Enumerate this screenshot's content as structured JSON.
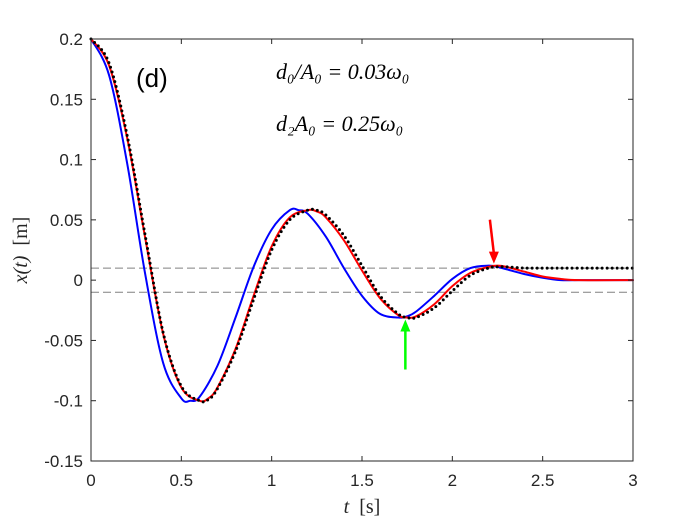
{
  "chart_data": {
    "type": "line",
    "panel_label": "(d)",
    "xlabel": {
      "var": "t",
      "unit": "[s]"
    },
    "ylabel": {
      "var": "x(t)",
      "unit": "[m]"
    },
    "xlim": [
      0,
      3
    ],
    "ylim": [
      -0.15,
      0.2
    ],
    "xticks": [
      0,
      0.5,
      1,
      1.5,
      2,
      2.5,
      3
    ],
    "xtick_labels": [
      "0",
      "0.5",
      "1",
      "1.5",
      "2",
      "2.5",
      "3"
    ],
    "yticks": [
      -0.15,
      -0.1,
      -0.05,
      0,
      0.05,
      0.1,
      0.15,
      0.2
    ],
    "ytick_labels": [
      "-0.15",
      "-0.1",
      "-0.05",
      "0",
      "0.05",
      "0.1",
      "0.15",
      "0.2"
    ],
    "annotations": [
      {
        "text": "d₀/A₀ = 0.03ω₀"
      },
      {
        "text": "d₂A₀ = 0.25ω₀"
      }
    ],
    "reference_lines": [
      {
        "y": 0.01,
        "style": "dashed",
        "color": "#808080"
      },
      {
        "y": -0.01,
        "style": "dashed",
        "color": "#808080"
      }
    ],
    "series": [
      {
        "name": "blue",
        "color": "#0000ff",
        "style": "solid",
        "x": [
          0,
          0.1,
          0.2,
          0.3,
          0.4,
          0.5,
          0.55,
          0.6,
          0.7,
          0.8,
          0.9,
          1.0,
          1.1,
          1.15,
          1.2,
          1.3,
          1.4,
          1.5,
          1.6,
          1.7,
          1.75,
          1.8,
          1.9,
          2.0,
          2.1,
          2.2,
          2.25,
          2.3,
          2.4,
          2.5,
          2.6,
          2.7,
          3.0
        ],
        "y": [
          0.2,
          0.17,
          0.097,
          0.005,
          -0.069,
          -0.098,
          -0.1,
          -0.097,
          -0.071,
          -0.031,
          0.011,
          0.042,
          0.058,
          0.058,
          0.055,
          0.036,
          0.01,
          -0.013,
          -0.028,
          -0.031,
          -0.03,
          -0.026,
          -0.013,
          0.001,
          0.01,
          0.012,
          0.011,
          0.009,
          0.005,
          0.002,
          0,
          0,
          0
        ]
      },
      {
        "name": "red",
        "color": "#ff0000",
        "style": "solid",
        "x": [
          0,
          0.1,
          0.2,
          0.3,
          0.4,
          0.5,
          0.6,
          0.65,
          0.7,
          0.8,
          0.9,
          1.0,
          1.1,
          1.2,
          1.25,
          1.3,
          1.4,
          1.5,
          1.6,
          1.7,
          1.75,
          1.8,
          1.9,
          2.0,
          2.1,
          2.2,
          2.25,
          2.3,
          2.4,
          2.5,
          2.6,
          2.7,
          3.0
        ],
        "y": [
          0.2,
          0.178,
          0.118,
          0.035,
          -0.045,
          -0.089,
          -0.1,
          -0.098,
          -0.089,
          -0.057,
          -0.013,
          0.028,
          0.052,
          0.058,
          0.057,
          0.052,
          0.033,
          0.008,
          -0.015,
          -0.029,
          -0.031,
          -0.03,
          -0.02,
          -0.005,
          0.006,
          0.011,
          0.012,
          0.011,
          0.007,
          0.003,
          0.001,
          0,
          0
        ]
      },
      {
        "name": "black-dotted",
        "color": "#000000",
        "style": "dotted",
        "x": [
          0,
          0.1,
          0.2,
          0.3,
          0.4,
          0.5,
          0.6,
          0.65,
          0.7,
          0.8,
          0.9,
          1.0,
          1.1,
          1.2,
          1.25,
          1.3,
          1.4,
          1.5,
          1.6,
          1.7,
          1.75,
          1.8,
          1.9,
          2.0,
          2.1,
          2.2,
          2.25,
          2.3,
          2.4,
          2.5,
          2.6,
          2.8,
          3.0
        ],
        "y": [
          0.2,
          0.18,
          0.12,
          0.037,
          -0.044,
          -0.088,
          -0.1,
          -0.099,
          -0.09,
          -0.059,
          -0.016,
          0.025,
          0.05,
          0.058,
          0.058,
          0.054,
          0.037,
          0.012,
          -0.013,
          -0.028,
          -0.031,
          -0.031,
          -0.023,
          -0.009,
          0.004,
          0.01,
          0.011,
          0.011,
          0.01,
          0.01,
          0.01,
          0.01,
          0.01
        ]
      }
    ],
    "arrows": [
      {
        "color": "#ff0000",
        "direction": "down",
        "target_x": 2.23,
        "target_y": 0.012
      },
      {
        "color": "#00ff00",
        "direction": "up",
        "target_x": 1.74,
        "target_y": -0.031
      }
    ]
  }
}
